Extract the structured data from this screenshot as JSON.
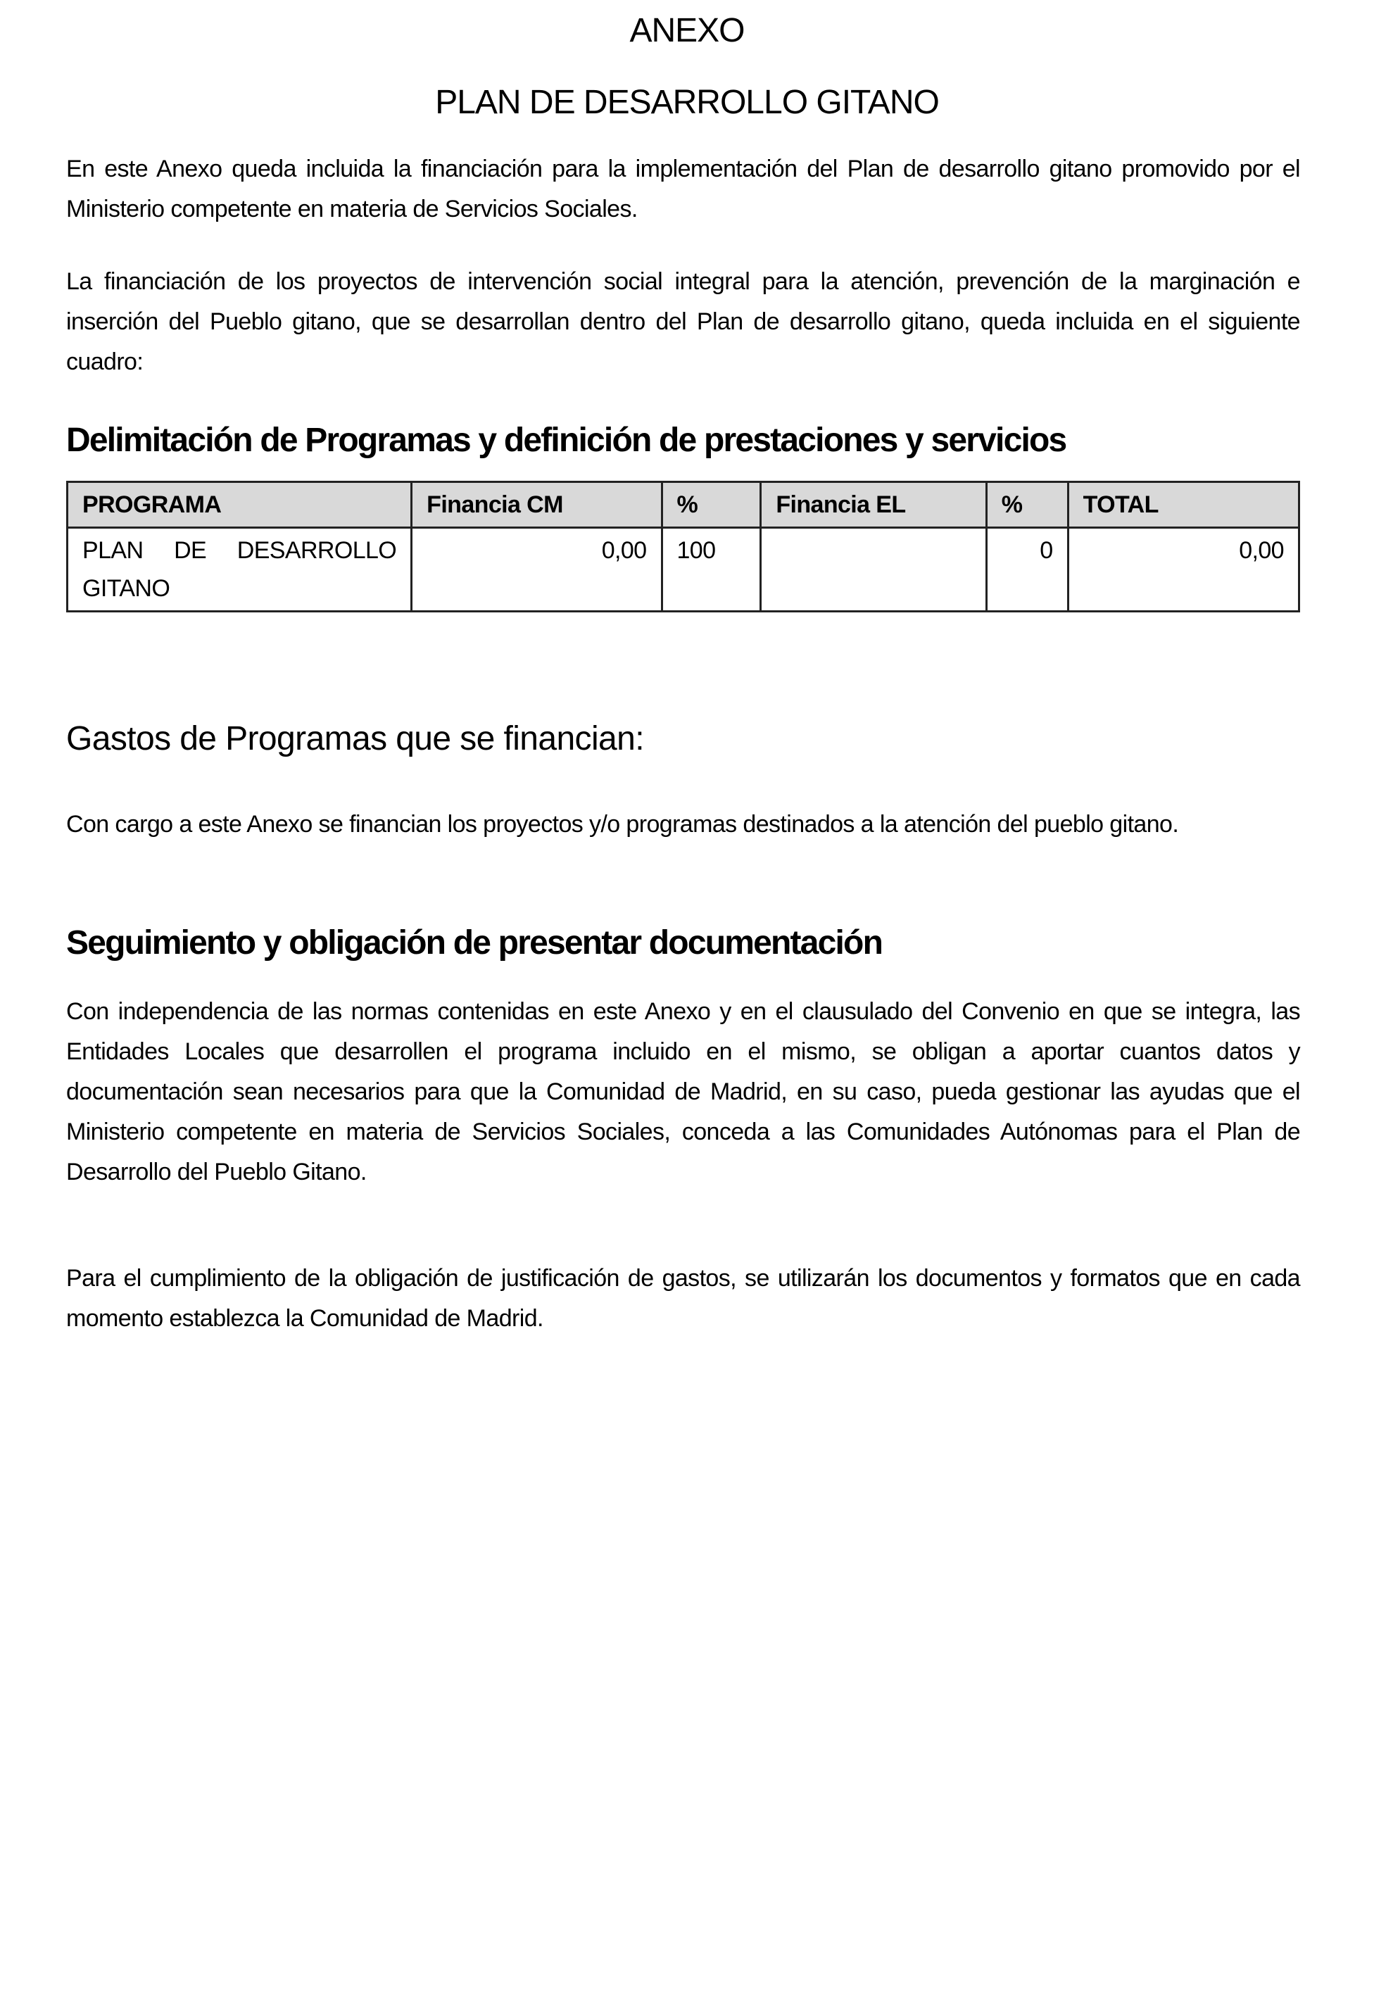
{
  "title": "ANEXO",
  "subtitle": "PLAN DE DESARROLLO GITANO",
  "intro": [
    "En este Anexo queda incluida la financiación para la implementación del Plan de desarrollo gitano promovido por el Ministerio competente en materia de Servicios Sociales.",
    "La financiación de los proyectos de intervención social integral para la atención, prevención de la marginación e inserción del Pueblo gitano, que se desarrollan dentro del Plan de desarrollo gitano, queda incluida en el siguiente cuadro:"
  ],
  "section1": {
    "heading": "Delimitación de Programas y definición de prestaciones y servicios",
    "table": {
      "headers": [
        "PROGRAMA",
        "Financia CM",
        "%",
        "Financia EL",
        "%",
        "TOTAL"
      ],
      "rows": [
        [
          "PLAN DE DESARROLLO GITANO",
          "0,00",
          "100",
          "",
          "0",
          "0,00"
        ]
      ]
    }
  },
  "section2": {
    "heading": "Gastos de Programas que se financian:",
    "text": "Con cargo a este Anexo se financian los proyectos y/o programas destinados a la atención del pueblo gitano."
  },
  "section3": {
    "heading": "Seguimiento y obligación de presentar documentación",
    "paragraphs": [
      "Con independencia de las normas contenidas en este Anexo y en el clausulado del Convenio en que se integra, las Entidades Locales que desarrollen el programa incluido en el mismo, se obligan a aportar cuantos datos y documentación sean necesarios para que la Comunidad de Madrid, en su caso, pueda gestionar las ayudas que el Ministerio competente en materia de Servicios Sociales, conceda a las Comunidades Autónomas para el Plan de Desarrollo del Pueblo Gitano.",
      "Para el cumplimiento de la obligación de justificación de gastos, se utilizarán los documentos y formatos que en cada momento establezca la Comunidad de Madrid."
    ]
  }
}
